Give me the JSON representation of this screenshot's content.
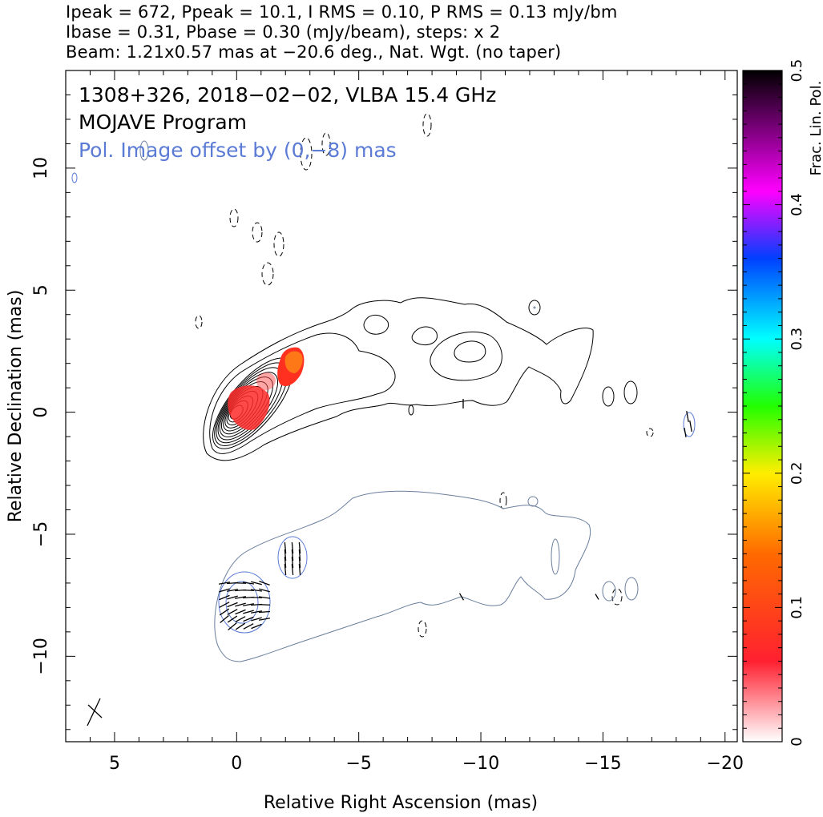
{
  "header": {
    "line1": "Ipeak = 672, Ppeak = 10.1, I RMS = 0.10, P RMS = 0.13 mJy/bm",
    "line2": "Ibase = 0.31, Pbase = 0.30 (mJy/beam), steps: x 2",
    "line3": "Beam: 1.21x0.57 mas at −20.6 deg., Nat. Wgt. (no taper)"
  },
  "chart_data": {
    "type": "contour",
    "title_lines": [
      "1308+326, 2018−02−02, VLBA 15.4 GHz",
      "MOJAVE Program"
    ],
    "subtitle": "Pol. Image offset by (0,−8) mas",
    "xlabel": "Relative Right Ascension (mas)",
    "ylabel": "Relative Declination (mas)",
    "xlim": [
      7,
      -20.5
    ],
    "ylim": [
      -13.5,
      14
    ],
    "xticks": [
      5,
      0,
      -5,
      -10,
      -15,
      -20
    ],
    "xtick_labels": [
      "5",
      "0",
      "−5",
      "−10",
      "−15",
      "−20"
    ],
    "yticks": [
      10,
      5,
      0,
      -5,
      -10
    ],
    "ytick_labels": [
      "10",
      "5",
      "0",
      "−5",
      "−10"
    ],
    "colorbar": {
      "label": "Frac. Lin. Pol.",
      "range": [
        0,
        0.5
      ],
      "ticks": [
        0,
        0.1,
        0.2,
        0.3,
        0.4,
        0.5
      ],
      "tick_labels": [
        "0",
        "0.1",
        "0.2",
        "0.3",
        "0.4",
        "0.5"
      ]
    },
    "stokes_i_core": {
      "x": 0,
      "y": 0,
      "levels": 11
    },
    "polarized_regions": [
      {
        "x": -2.2,
        "y": 1.8,
        "frac_pol": 0.12
      },
      {
        "x": -0.3,
        "y": -0.3,
        "frac_pol": 0.07
      },
      {
        "x": -0.8,
        "y": 0.8,
        "frac_pol": 0.04
      }
    ],
    "beam": {
      "major_mas": 1.21,
      "minor_mas": 0.57,
      "pa_deg": -20.6,
      "x": 5.9,
      "y": -12.2
    }
  },
  "colors": {
    "stokes_i": "#000000",
    "pol_contour": "#6a7f9e",
    "pol_text": "#5b7bd5",
    "evpa": "#000000"
  }
}
